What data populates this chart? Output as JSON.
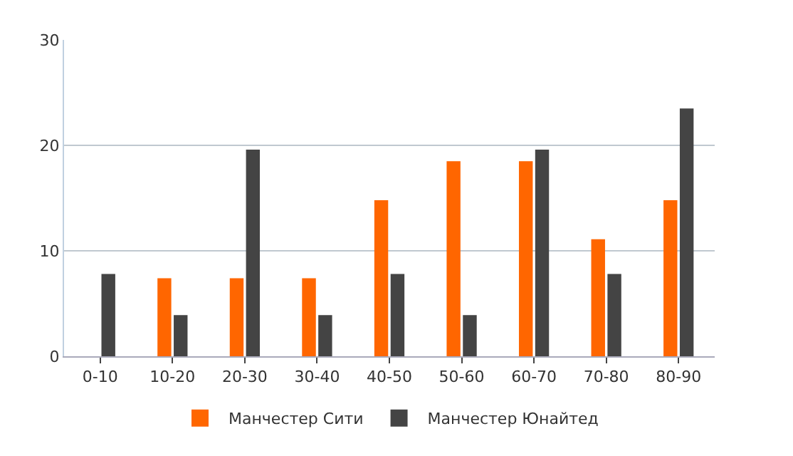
{
  "chart_data": {
    "type": "bar",
    "categories": [
      "0-10",
      "10-20",
      "20-30",
      "30-40",
      "40-50",
      "50-60",
      "60-70",
      "70-80",
      "80-90"
    ],
    "series": [
      {
        "name": "Манчестер Сити",
        "color": "#ff6600",
        "values": [
          0,
          7.4,
          7.4,
          7.4,
          14.8,
          18.5,
          18.5,
          11.1,
          14.8
        ]
      },
      {
        "name": "Манчестер Юнайтед",
        "color": "#444444",
        "values": [
          7.8,
          3.9,
          19.6,
          3.9,
          7.8,
          3.9,
          19.6,
          7.8,
          23.5
        ]
      }
    ],
    "ylim": [
      0,
      30
    ],
    "yticks": [
      0,
      10,
      20,
      30
    ],
    "grid": "y",
    "legend": "bottom"
  }
}
